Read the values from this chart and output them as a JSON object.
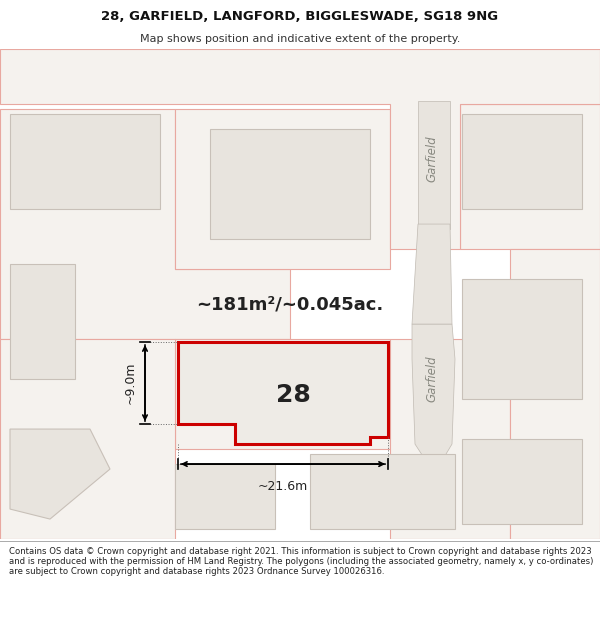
{
  "title_line1": "28, GARFIELD, LANGFORD, BIGGLESWADE, SG18 9NG",
  "title_line2": "Map shows position and indicative extent of the property.",
  "footer_text": "Contains OS data © Crown copyright and database right 2021. This information is subject to Crown copyright and database rights 2023 and is reproduced with the permission of HM Land Registry. The polygons (including the associated geometry, namely x, y co-ordinates) are subject to Crown copyright and database rights 2023 Ordnance Survey 100026316.",
  "bg_color": "#f5f2ee",
  "map_bg": "#f5f2ee",
  "property_color": "#cc0000",
  "property_fill": "#eeebe6",
  "label_28": "28",
  "area_text": "~181m²/~0.045ac.",
  "dim_width": "~21.6m",
  "dim_height": "~9.0m",
  "road_label_top": "Garfield",
  "road_label_mid": "Garfield",
  "block_color": "#e8e4de",
  "block_edge": "#c8c0b8",
  "outline_color": "#e8a8a0",
  "road_fill": "#e0dbd4",
  "road_outline": "#c8c0b8"
}
